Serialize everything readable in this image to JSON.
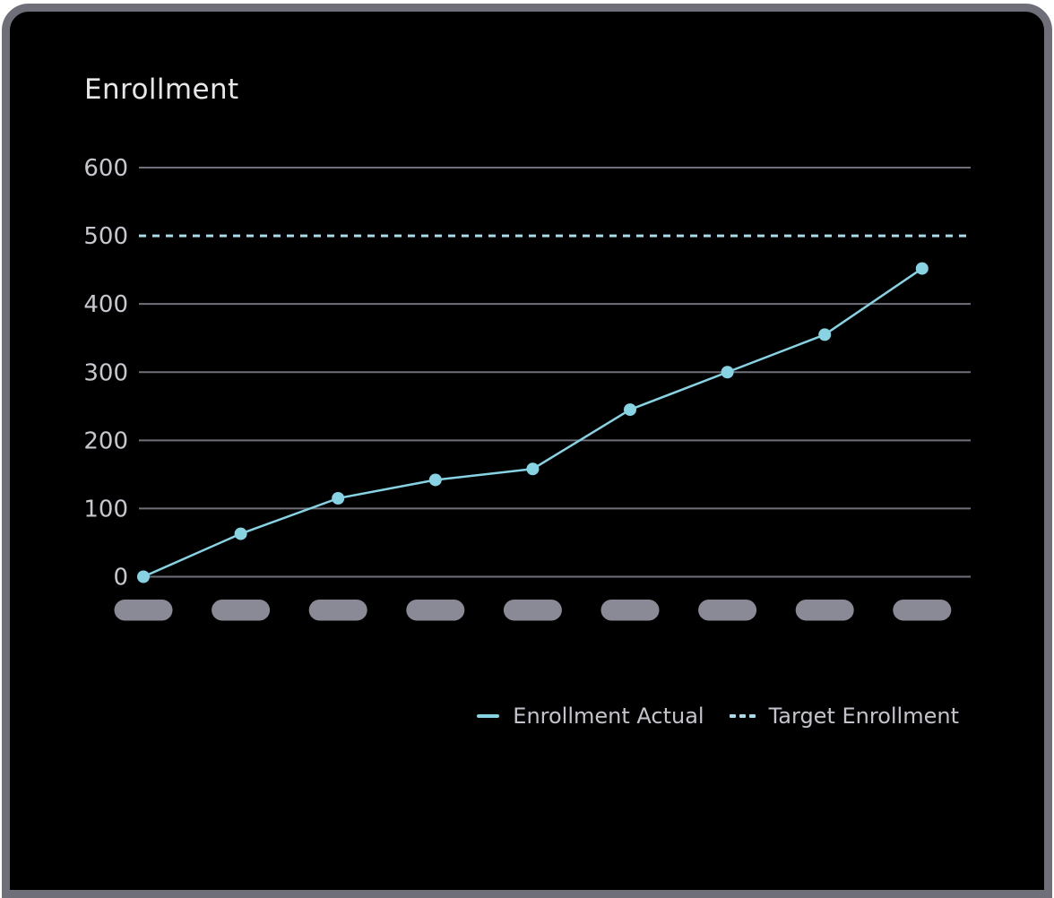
{
  "chart_data": {
    "type": "line",
    "title": "Enrollment",
    "xlabel": "",
    "ylabel": "",
    "ylim": [
      0,
      600
    ],
    "y_ticks": [
      600,
      500,
      400,
      300,
      200,
      100,
      0
    ],
    "grid": true,
    "x_tick_placeholder_count": 9,
    "x_tick_labels": "redacted (gray pills)",
    "legend_position": "bottom-right",
    "series": [
      {
        "name": "Enrollment Actual",
        "style": "solid",
        "markers": true,
        "values": [
          0,
          63,
          115,
          142,
          158,
          245,
          300,
          355,
          452
        ]
      },
      {
        "name": "Target Enrollment",
        "style": "dashed",
        "markers": false,
        "value": 500
      }
    ]
  },
  "colors": {
    "card_background": "#000000",
    "frame_border": "#6f6f79",
    "title_text": "#e7e7ea",
    "axis_text": "#c7c7ce",
    "gridline": "#70707b",
    "actual_line": "#87d3e3",
    "target_line": "#a9dcea",
    "x_pill": "#8a8a96",
    "legend_text": "#c3c3cb"
  }
}
